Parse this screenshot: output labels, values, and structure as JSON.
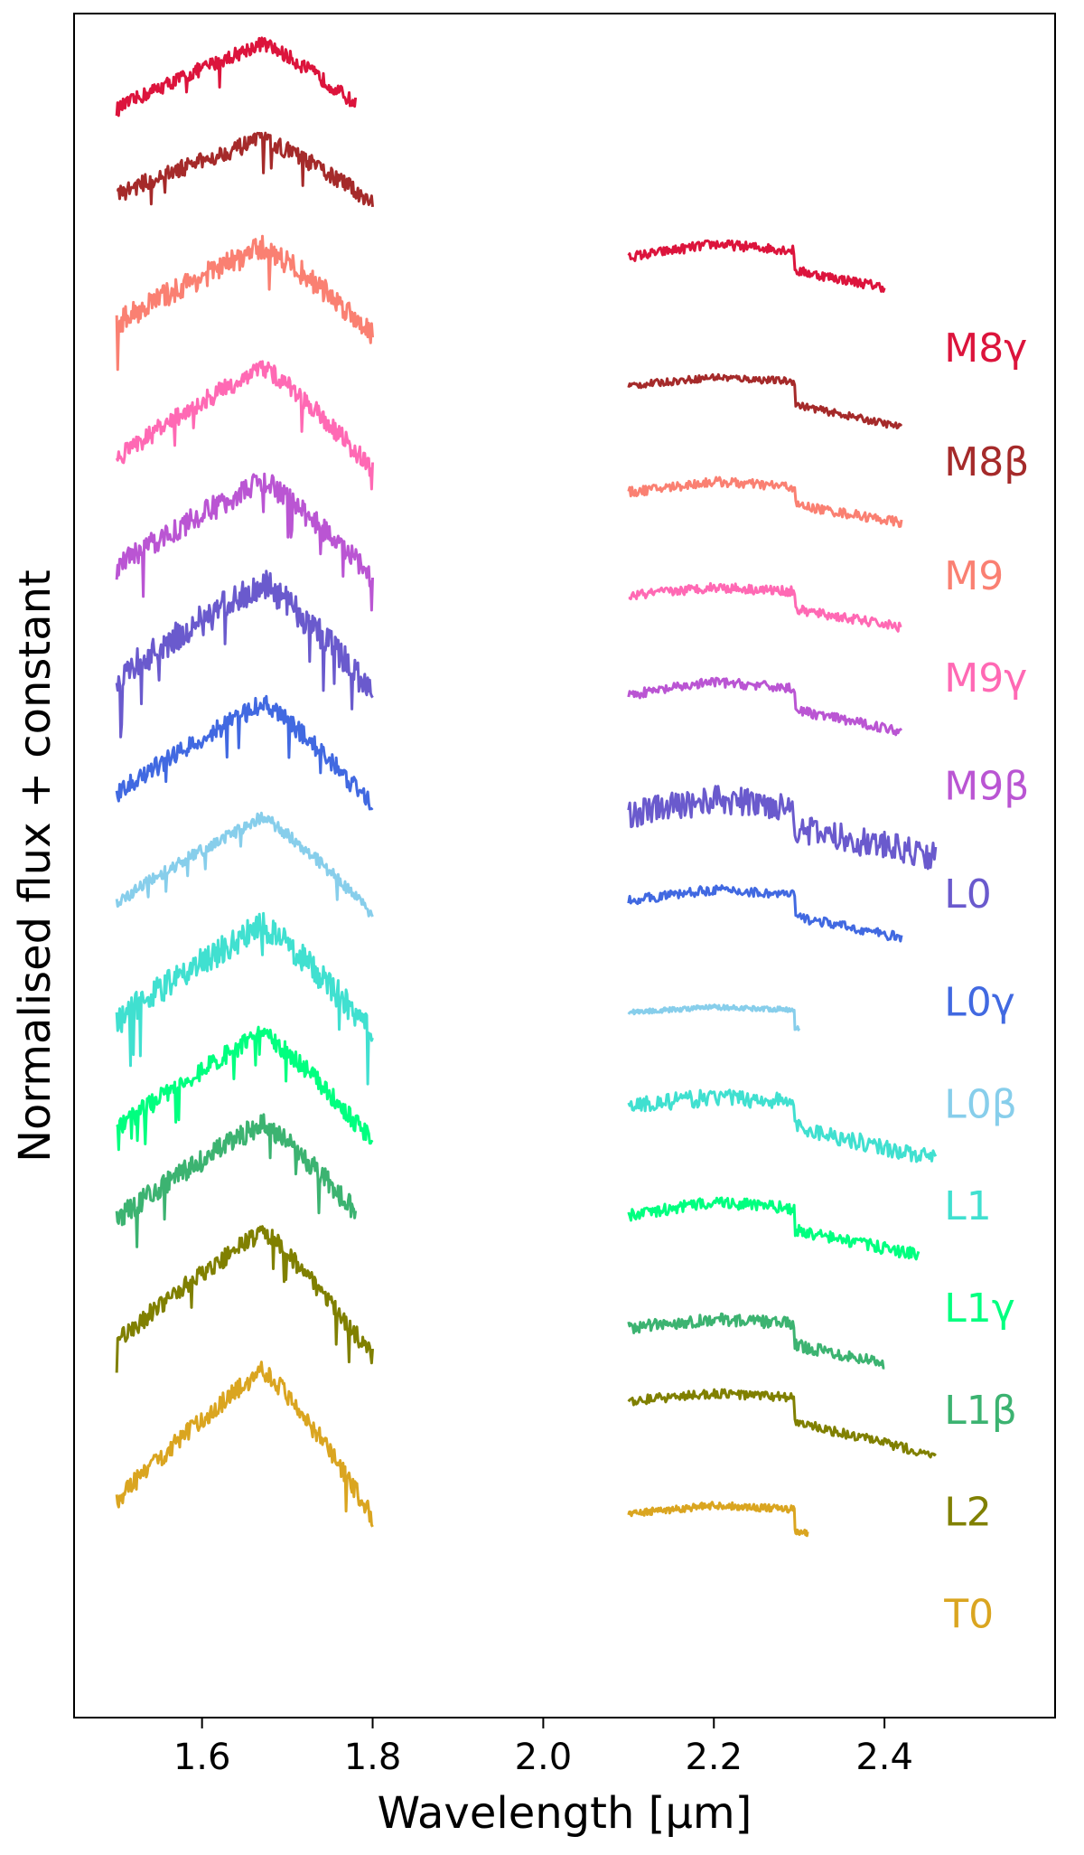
{
  "chart_data": {
    "type": "line",
    "title": "",
    "xlabel": "Wavelength [μm]",
    "ylabel": "Normalised flux + constant",
    "xlim": [
      1.45,
      2.6
    ],
    "ylim": [
      0,
      14.2
    ],
    "xticks": [
      1.6,
      1.8,
      2.0,
      2.2,
      2.4
    ],
    "xtick_labels": [
      "1.6",
      "1.8",
      "2.0",
      "2.2",
      "2.4"
    ],
    "grid": false,
    "legend_placement": "right, inline labels",
    "h_band": {
      "x_start": 1.5,
      "x_end": 1.8
    },
    "k_band": {
      "x_start": 2.1
    },
    "series": [
      {
        "name": "M8γ",
        "color": "#dc143c",
        "h_offset": 13.3,
        "h_peak": 0.65,
        "h_noise": 0.06,
        "h_end": 1.78,
        "k_offset": 12.1,
        "k_level": 0.18,
        "k_drop": 0.28,
        "k_end": 2.4,
        "k_noise": 0.04,
        "label_y": 11.3
      },
      {
        "name": "M8β",
        "color": "#a52a2a",
        "h_offset": 12.6,
        "h_peak": 0.55,
        "h_noise": 0.07,
        "h_end": 1.8,
        "k_offset": 11.05,
        "k_level": 0.12,
        "k_drop": 0.32,
        "k_end": 2.42,
        "k_noise": 0.03,
        "label_y": 10.35
      },
      {
        "name": "M9",
        "color": "#fa8072",
        "h_offset": 11.5,
        "h_peak": 0.75,
        "h_noise": 0.1,
        "h_end": 1.8,
        "k_offset": 10.15,
        "k_level": 0.15,
        "k_drop": 0.25,
        "k_end": 2.42,
        "k_noise": 0.04,
        "label_y": 9.4
      },
      {
        "name": "M9γ",
        "color": "#ff69b4",
        "h_offset": 10.35,
        "h_peak": 0.9,
        "h_noise": 0.08,
        "h_end": 1.8,
        "k_offset": 9.3,
        "k_level": 0.12,
        "k_drop": 0.25,
        "k_end": 2.42,
        "k_noise": 0.04,
        "label_y": 8.55
      },
      {
        "name": "M9β",
        "color": "#ba55d3",
        "h_offset": 9.45,
        "h_peak": 0.85,
        "h_noise": 0.1,
        "h_end": 1.8,
        "k_offset": 8.45,
        "k_level": 0.18,
        "k_drop": 0.3,
        "k_end": 2.42,
        "k_noise": 0.04,
        "label_y": 7.65
      },
      {
        "name": "L0",
        "color": "#6a5acd",
        "h_offset": 8.5,
        "h_peak": 0.95,
        "h_noise": 0.13,
        "h_end": 1.8,
        "k_offset": 7.45,
        "k_level": 0.2,
        "k_drop": 0.3,
        "k_end": 2.46,
        "k_noise": 0.12,
        "label_y": 6.75
      },
      {
        "name": "L0γ",
        "color": "#4169e1",
        "h_offset": 7.55,
        "h_peak": 0.9,
        "h_noise": 0.08,
        "h_end": 1.8,
        "k_offset": 6.75,
        "k_level": 0.15,
        "k_drop": 0.3,
        "k_end": 2.42,
        "k_noise": 0.04,
        "label_y": 5.85
      },
      {
        "name": "L0β",
        "color": "#87ceeb",
        "h_offset": 6.65,
        "h_peak": 0.85,
        "h_noise": 0.05,
        "h_end": 1.8,
        "k_offset": 5.85,
        "k_level": 0.07,
        "k_drop": 0.25,
        "k_end": 2.3,
        "k_noise": 0.02,
        "label_y": 5.0
      },
      {
        "name": "L1",
        "color": "#40e0d0",
        "h_offset": 5.65,
        "h_peak": 0.95,
        "h_noise": 0.12,
        "h_end": 1.8,
        "k_offset": 5.05,
        "k_level": 0.12,
        "k_drop": 0.35,
        "k_end": 2.46,
        "k_noise": 0.07,
        "label_y": 4.15
      },
      {
        "name": "L1γ",
        "color": "#00ff7f",
        "h_offset": 4.75,
        "h_peak": 0.95,
        "h_noise": 0.08,
        "h_end": 1.8,
        "k_offset": 4.1,
        "k_level": 0.2,
        "k_drop": 0.3,
        "k_end": 2.44,
        "k_noise": 0.05,
        "label_y": 3.3
      },
      {
        "name": "L1β",
        "color": "#3cb371",
        "h_offset": 4.0,
        "h_peak": 0.95,
        "h_noise": 0.09,
        "h_end": 1.78,
        "k_offset": 3.2,
        "k_level": 0.12,
        "k_drop": 0.3,
        "k_end": 2.4,
        "k_noise": 0.05,
        "label_y": 2.45
      },
      {
        "name": "L2",
        "color": "#808000",
        "h_offset": 2.95,
        "h_peak": 1.1,
        "h_noise": 0.08,
        "h_end": 1.8,
        "k_offset": 2.6,
        "k_level": 0.1,
        "k_drop": 0.35,
        "k_end": 2.46,
        "k_noise": 0.04,
        "label_y": 1.6
      },
      {
        "name": "T0",
        "color": "#daa520",
        "h_offset": 1.6,
        "h_peak": 1.3,
        "h_noise": 0.08,
        "h_end": 1.8,
        "k_offset": 1.65,
        "k_level": 0.12,
        "k_drop": 0.3,
        "k_end": 2.31,
        "k_noise": 0.03,
        "label_y": 0.75
      }
    ]
  }
}
